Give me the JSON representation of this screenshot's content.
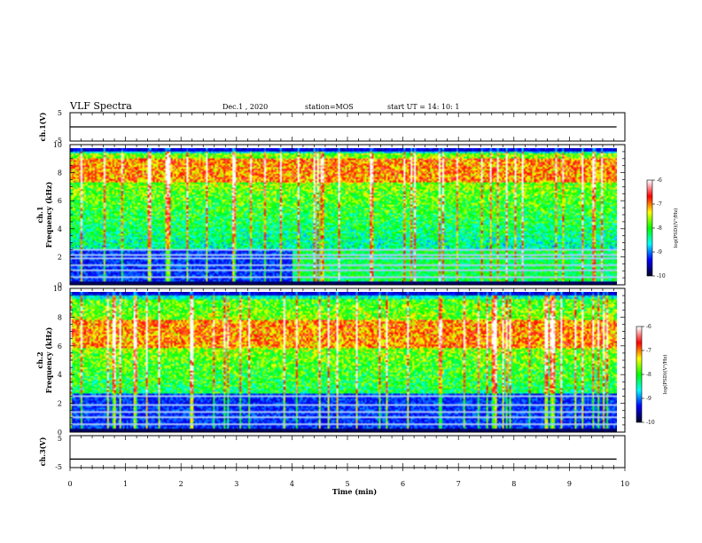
{
  "header": {
    "title": "VLF Spectra",
    "date": "Dec.1 , 2020",
    "station": "station=MOS",
    "start": "start UT =  14: 10: 1"
  },
  "chart_data": [
    {
      "type": "line",
      "panel": "ch.1(V)",
      "ylabel": "ch.1(V)",
      "xlim": [
        0,
        10
      ],
      "ylim": [
        -5,
        5
      ],
      "yticks": [
        "5",
        "-5"
      ],
      "series": [
        {
          "x": [
            0,
            9.85
          ],
          "y": [
            0,
            0
          ]
        }
      ]
    },
    {
      "type": "heatmap",
      "panel": "ch.1",
      "ylabel_lines": [
        "ch.1",
        "Frequency (kHz)"
      ],
      "xlim": [
        0,
        10
      ],
      "ylim": [
        0,
        10
      ],
      "yticks": [
        "0",
        "2",
        "4",
        "6",
        "8",
        "10"
      ],
      "data_extent_min": 9.85,
      "colorbar": {
        "label": "log(PSD)(V²/Hz)",
        "ticks": [
          "-6",
          "-7",
          "-8",
          "-9",
          "-10"
        ],
        "range": [
          -10,
          -6
        ]
      },
      "features": {
        "strong_band_khz": [
          7.5,
          9.3
        ],
        "background_band_khz": [
          2.5,
          9.6
        ],
        "low_noise_above_4min_khz": [
          0.3,
          2.6
        ],
        "horizontal_lines_khz": [
          0.6,
          1.1,
          1.5,
          2.0,
          2.3,
          2.6
        ]
      }
    },
    {
      "type": "heatmap",
      "panel": "ch.2",
      "ylabel_lines": [
        "ch.2",
        "Frequency (kHz)"
      ],
      "xlim": [
        0,
        10
      ],
      "ylim": [
        0,
        10
      ],
      "yticks": [
        "0",
        "2",
        "4",
        "6",
        "8",
        "10"
      ],
      "data_extent_min": 9.85,
      "colorbar": {
        "label": "log(PSD)(V²/Hz)",
        "ticks": [
          "-6",
          "-7",
          "-8",
          "-9",
          "-10"
        ],
        "range": [
          -10,
          -6
        ]
      },
      "features": {
        "strong_band_khz": [
          6.0,
          8.0
        ],
        "background_band_khz": [
          2.8,
          9.5
        ],
        "horizontal_lines_khz": [
          0.6,
          1.1,
          1.5,
          2.0,
          2.6
        ]
      }
    },
    {
      "type": "line",
      "panel": "ch.3(V)",
      "ylabel": "ch.3(V)",
      "xlim": [
        0,
        10
      ],
      "ylim": [
        -5,
        5
      ],
      "yticks": [
        "5",
        "-5"
      ],
      "series": [
        {
          "x": [
            0,
            9.85
          ],
          "y": [
            -3.0,
            -3.0
          ]
        }
      ]
    }
  ],
  "xaxis": {
    "label": "Time (min)",
    "ticks": [
      "0",
      "1",
      "2",
      "3",
      "4",
      "5",
      "6",
      "7",
      "8",
      "9",
      "10"
    ]
  },
  "colors": {
    "colormap": [
      "#00002a",
      "#0000ff",
      "#00ffff",
      "#00ff00",
      "#ffff00",
      "#ff0000",
      "#ffffff"
    ]
  }
}
